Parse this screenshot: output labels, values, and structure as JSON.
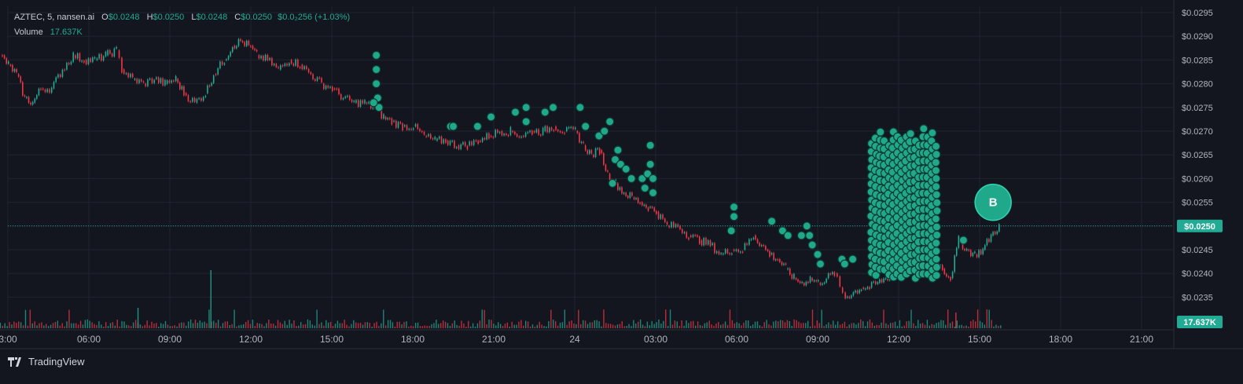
{
  "app": {
    "footer_brand": "TradingView"
  },
  "legend": {
    "symbol": "AZTEC, 5, nansen.ai",
    "o_label": "O",
    "o_value": "$0.0248",
    "h_label": "H",
    "h_value": "$0.0250",
    "l_label": "L",
    "l_value": "$0.0248",
    "c_label": "C",
    "c_value": "$0.0250",
    "change": "$0.0₂256 (+1.03%)",
    "volume_label": "Volume",
    "volume_value": "17.637K"
  },
  "colors": {
    "background": "#13161f",
    "grid": "#1f2430",
    "up": "#22ab94",
    "down": "#f23645",
    "bubble": "#1fa98a",
    "axis_text": "#b2b5be"
  },
  "chart_data": {
    "type": "candlestick",
    "ylim": [
      0.0232,
      0.0296
    ],
    "y_ticks": [
      "$0.0295",
      "$0.0290",
      "$0.0285",
      "$0.0280",
      "$0.0275",
      "$0.0270",
      "$0.0265",
      "$0.0260",
      "$0.0255",
      "$0.0250",
      "$0.0245",
      "$0.0240",
      "$0.0235"
    ],
    "y_tick_values": [
      0.0295,
      0.029,
      0.0285,
      0.028,
      0.0275,
      0.027,
      0.0265,
      0.026,
      0.0255,
      0.025,
      0.0245,
      0.024,
      0.0235
    ],
    "x_ticks": [
      "3:00",
      "06:00",
      "09:00",
      "12:00",
      "15:00",
      "18:00",
      "21:00",
      "24",
      "03:00",
      "06:00",
      "09:00",
      "12:00",
      "15:00",
      "18:00",
      "21:00"
    ],
    "x_tick_hours": [
      3,
      6,
      9,
      12,
      15,
      18,
      21,
      24,
      27,
      30,
      33,
      36,
      39,
      42,
      45
    ],
    "last_price": 0.025,
    "last_price_label": "$0.0250",
    "volume_label_value": "17.637K",
    "price_path": [
      [
        2.7,
        0.0286
      ],
      [
        3.0,
        0.0284
      ],
      [
        3.3,
        0.0282
      ],
      [
        3.6,
        0.0277
      ],
      [
        3.9,
        0.0276
      ],
      [
        4.2,
        0.0279
      ],
      [
        4.6,
        0.0279
      ],
      [
        5.0,
        0.0283
      ],
      [
        5.4,
        0.0286
      ],
      [
        5.8,
        0.0285
      ],
      [
        6.2,
        0.0285
      ],
      [
        6.6,
        0.0286
      ],
      [
        7.0,
        0.0287
      ],
      [
        7.2,
        0.0283
      ],
      [
        7.6,
        0.0281
      ],
      [
        8.0,
        0.028
      ],
      [
        8.4,
        0.0281
      ],
      [
        8.8,
        0.028
      ],
      [
        9.2,
        0.0281
      ],
      [
        9.5,
        0.0278
      ],
      [
        9.9,
        0.0276
      ],
      [
        10.3,
        0.0278
      ],
      [
        10.6,
        0.0282
      ],
      [
        11.0,
        0.0285
      ],
      [
        11.3,
        0.0288
      ],
      [
        11.6,
        0.0289
      ],
      [
        11.9,
        0.0288
      ],
      [
        12.2,
        0.0286
      ],
      [
        12.6,
        0.0285
      ],
      [
        13.0,
        0.0283
      ],
      [
        13.4,
        0.0285
      ],
      [
        13.8,
        0.0284
      ],
      [
        14.2,
        0.0282
      ],
      [
        14.6,
        0.028
      ],
      [
        15.0,
        0.0279
      ],
      [
        15.4,
        0.0277
      ],
      [
        15.8,
        0.0276
      ],
      [
        16.2,
        0.0276
      ],
      [
        16.5,
        0.0275
      ],
      [
        16.9,
        0.0273
      ],
      [
        17.2,
        0.0272
      ],
      [
        17.6,
        0.0271
      ],
      [
        18.0,
        0.0271
      ],
      [
        18.4,
        0.0269
      ],
      [
        18.8,
        0.0268
      ],
      [
        19.2,
        0.0268
      ],
      [
        19.6,
        0.0267
      ],
      [
        20.0,
        0.0267
      ],
      [
        20.4,
        0.0268
      ],
      [
        20.8,
        0.0269
      ],
      [
        21.2,
        0.027
      ],
      [
        21.6,
        0.027
      ],
      [
        22.0,
        0.0269
      ],
      [
        22.4,
        0.027
      ],
      [
        22.8,
        0.027
      ],
      [
        23.2,
        0.0271
      ],
      [
        23.6,
        0.027
      ],
      [
        24.0,
        0.027
      ],
      [
        24.3,
        0.0267
      ],
      [
        24.6,
        0.0265
      ],
      [
        24.9,
        0.0266
      ],
      [
        25.2,
        0.0261
      ],
      [
        25.5,
        0.0259
      ],
      [
        25.8,
        0.0257
      ],
      [
        26.1,
        0.0256
      ],
      [
        26.4,
        0.0255
      ],
      [
        26.7,
        0.0254
      ],
      [
        27.0,
        0.0253
      ],
      [
        27.4,
        0.025
      ],
      [
        27.8,
        0.025
      ],
      [
        28.2,
        0.0248
      ],
      [
        28.6,
        0.0247
      ],
      [
        29.0,
        0.0246
      ],
      [
        29.4,
        0.0244
      ],
      [
        29.8,
        0.0245
      ],
      [
        30.2,
        0.0245
      ],
      [
        30.6,
        0.0248
      ],
      [
        30.9,
        0.0246
      ],
      [
        31.2,
        0.0244
      ],
      [
        31.5,
        0.0243
      ],
      [
        31.8,
        0.0241
      ],
      [
        32.1,
        0.0239
      ],
      [
        32.4,
        0.0238
      ],
      [
        32.7,
        0.0239
      ],
      [
        33.0,
        0.0238
      ],
      [
        33.3,
        0.0239
      ],
      [
        33.6,
        0.024
      ],
      [
        33.8,
        0.0237
      ],
      [
        34.0,
        0.0235
      ],
      [
        34.3,
        0.0236
      ],
      [
        34.6,
        0.0237
      ],
      [
        34.9,
        0.0237
      ],
      [
        35.2,
        0.0238
      ],
      [
        35.5,
        0.0239
      ],
      [
        35.8,
        0.024
      ],
      [
        36.1,
        0.0241
      ],
      [
        36.4,
        0.0243
      ],
      [
        36.7,
        0.0244
      ],
      [
        37.0,
        0.0246
      ],
      [
        37.3,
        0.0243
      ],
      [
        37.6,
        0.0241
      ],
      [
        37.9,
        0.0239
      ],
      [
        38.2,
        0.0247
      ],
      [
        38.5,
        0.0245
      ],
      [
        38.8,
        0.0244
      ],
      [
        39.1,
        0.0245
      ],
      [
        39.4,
        0.0248
      ],
      [
        39.7,
        0.025
      ]
    ],
    "volume_spikes": [
      [
        7.8,
        0.0
      ],
      [
        10.5,
        1.0
      ],
      [
        13.1,
        0.0
      ]
    ],
    "bubbles": [
      [
        16.65,
        0.0286
      ],
      [
        16.65,
        0.0283
      ],
      [
        16.65,
        0.028
      ],
      [
        16.7,
        0.0277
      ],
      [
        16.75,
        0.0275
      ],
      [
        16.55,
        0.0276
      ],
      [
        19.4,
        0.0271
      ],
      [
        19.5,
        0.0271
      ],
      [
        20.4,
        0.0271
      ],
      [
        20.9,
        0.0273
      ],
      [
        21.8,
        0.0274
      ],
      [
        22.2,
        0.0275
      ],
      [
        22.2,
        0.0272
      ],
      [
        22.9,
        0.0274
      ],
      [
        23.2,
        0.0275
      ],
      [
        24.2,
        0.0275
      ],
      [
        24.4,
        0.0271
      ],
      [
        24.9,
        0.0269
      ],
      [
        25.1,
        0.027
      ],
      [
        25.3,
        0.0272
      ],
      [
        25.5,
        0.0264
      ],
      [
        25.6,
        0.0266
      ],
      [
        25.7,
        0.0263
      ],
      [
        25.9,
        0.0262
      ],
      [
        26.1,
        0.026
      ],
      [
        25.4,
        0.0259
      ],
      [
        26.5,
        0.026
      ],
      [
        26.6,
        0.0258
      ],
      [
        26.7,
        0.0261
      ],
      [
        26.8,
        0.0263
      ],
      [
        26.8,
        0.0267
      ],
      [
        26.9,
        0.0257
      ],
      [
        26.9,
        0.026
      ],
      [
        29.9,
        0.0252
      ],
      [
        29.9,
        0.0254
      ],
      [
        29.8,
        0.0249
      ],
      [
        31.3,
        0.0251
      ],
      [
        31.7,
        0.0249
      ],
      [
        31.9,
        0.0248
      ],
      [
        32.4,
        0.0248
      ],
      [
        32.6,
        0.025
      ],
      [
        32.7,
        0.0248
      ],
      [
        32.8,
        0.0246
      ],
      [
        33.0,
        0.0244
      ],
      [
        33.1,
        0.0242
      ],
      [
        33.9,
        0.0243
      ],
      [
        34.0,
        0.0242
      ],
      [
        34.3,
        0.0243
      ],
      [
        38.4,
        0.0247
      ]
    ],
    "bubble_cluster": {
      "x_range": [
        35.0,
        37.4
      ],
      "y_range": [
        0.0239,
        0.0271
      ]
    },
    "marker": {
      "label": "B",
      "x": 39.5,
      "y": 0.0255
    }
  }
}
